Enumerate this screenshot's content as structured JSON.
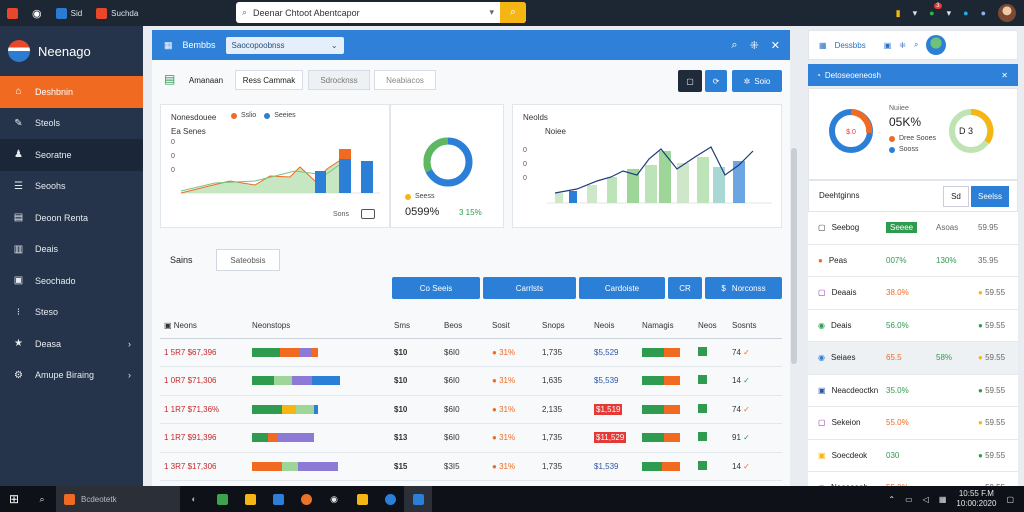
{
  "browser": {
    "tabs": [
      "Sid",
      "Suchda"
    ],
    "url_text": "Deenar Chtoot Abentcapor",
    "go_icon": "search-icon"
  },
  "sidebar": {
    "brand": "Neenago",
    "items": [
      {
        "label": "Deshbnin",
        "icon": "home-icon",
        "active": true
      },
      {
        "label": "Steols",
        "icon": "pen-icon"
      },
      {
        "label": "Seoratne",
        "icon": "users-icon",
        "highlight": true
      },
      {
        "label": "Seoohs",
        "icon": "list-icon"
      },
      {
        "label": "Deoon Renta",
        "icon": "file-icon"
      },
      {
        "label": "Deais",
        "icon": "doc-icon"
      },
      {
        "label": "Seochado",
        "icon": "briefcase-icon"
      },
      {
        "label": "Steso",
        "icon": "tree-icon"
      },
      {
        "label": "Deasa",
        "icon": "star-icon",
        "chevron": true
      },
      {
        "label": "Amupe Biraing",
        "icon": "gear-icon",
        "chevron": true
      }
    ]
  },
  "main": {
    "title": "Bembbs",
    "dropdown": "Saocopoobnss",
    "tabs": [
      "Amanaan",
      "Ress Cammak",
      "Sdrocknss",
      "Neabiacos"
    ],
    "toolbar_btn": "Soio",
    "card1": {
      "title": "Nonesdouee",
      "legend": [
        {
          "label": "Sslio",
          "color": "#f06a22"
        },
        {
          "label": "Seeies",
          "color": "#2c7fd6"
        }
      ],
      "subtitle": "Ea Senes",
      "footer": "Sons"
    },
    "card2": {
      "percent": "0599%",
      "small": "Seess",
      "delta": "3 15%"
    },
    "card3": {
      "title": "Neolds",
      "subtitle": "Noiee"
    },
    "filter_label": "Sains",
    "filter_input": "Sateobsis",
    "actions": [
      "Co Seeis",
      "Carrlsts",
      "Cardoiste",
      "CR",
      "Norconss"
    ],
    "table": {
      "headers": [
        "Neons",
        "Neonstops",
        "Sms",
        "Beos",
        "Sosit",
        "Snops",
        "Neois",
        "Namagis",
        "Neos",
        "Sosnts"
      ],
      "rows": [
        {
          "id": "1 5R7 $67,396",
          "a": "$10",
          "b": "$6I0",
          "c": "31%",
          "d": "1,735",
          "e": "$5,529",
          "f": "74"
        },
        {
          "id": "1 0R7 $71,306",
          "a": "$10",
          "b": "$6I0",
          "c": "31%",
          "d": "1,635",
          "e": "$5,539",
          "f": "14"
        },
        {
          "id": "1 1R7 $71,36%",
          "a": "$10",
          "b": "$6I0",
          "c": "31%",
          "d": "2,135",
          "e": "$1,519",
          "f": "74"
        },
        {
          "id": "1 1R7 $91,396",
          "a": "$13",
          "b": "$6I0",
          "c": "31%",
          "d": "1,735",
          "e": "$11,529",
          "f": "91"
        },
        {
          "id": "1 3R7 $17,306",
          "a": "$15",
          "b": "$3I5",
          "c": "31%",
          "d": "1,735",
          "e": "$1,539",
          "f": "14"
        },
        {
          "id": "1 4R7 $37,396",
          "a": "$13",
          "b": "$6I0",
          "c": "31%",
          "d": "1,735",
          "e": "$1,525",
          "f": "74"
        }
      ]
    }
  },
  "right": {
    "head": "Dessbbs",
    "blue": "Detoseoeneosh",
    "donut_labels": [
      "Nuiiee",
      "05K%",
      "Dree Sooes",
      "Sooss"
    ],
    "donut2_center": "D 3",
    "block_title": "Deehtginns",
    "btn1": "Sd",
    "btn2": "Seelss",
    "rows": [
      {
        "name": "Seebog",
        "c2": "Seeee",
        "c3": "Asoas",
        "c4": "59.95"
      },
      {
        "name": "Peas",
        "c2": "007%",
        "c3": "130%",
        "c4": "35.95"
      },
      {
        "name": "Deaais",
        "c2": "38.0%",
        "c3": "",
        "c4": "59.55"
      },
      {
        "name": "Deais",
        "c2": "56.0%",
        "c3": "",
        "c4": "59.55"
      },
      {
        "name": "Seiaes",
        "c2": "65.5",
        "c3": "58%",
        "c4": "59.55"
      },
      {
        "name": "Neacdeoctkn",
        "c2": "35.0%",
        "c3": "",
        "c4": "59.55"
      },
      {
        "name": "Sekeion",
        "c2": "55.0%",
        "c3": "",
        "c4": "59.55"
      },
      {
        "name": "Soecdeok",
        "c2": "030",
        "c3": "",
        "c4": "59.55"
      },
      {
        "name": "Neooaeoh",
        "c2": "55.0%",
        "c3": "",
        "c4": "59.55"
      }
    ]
  },
  "taskbar": {
    "app_label": "Bcdeotetk",
    "time": "10:55 F.M",
    "date": "10:00:2020"
  }
}
